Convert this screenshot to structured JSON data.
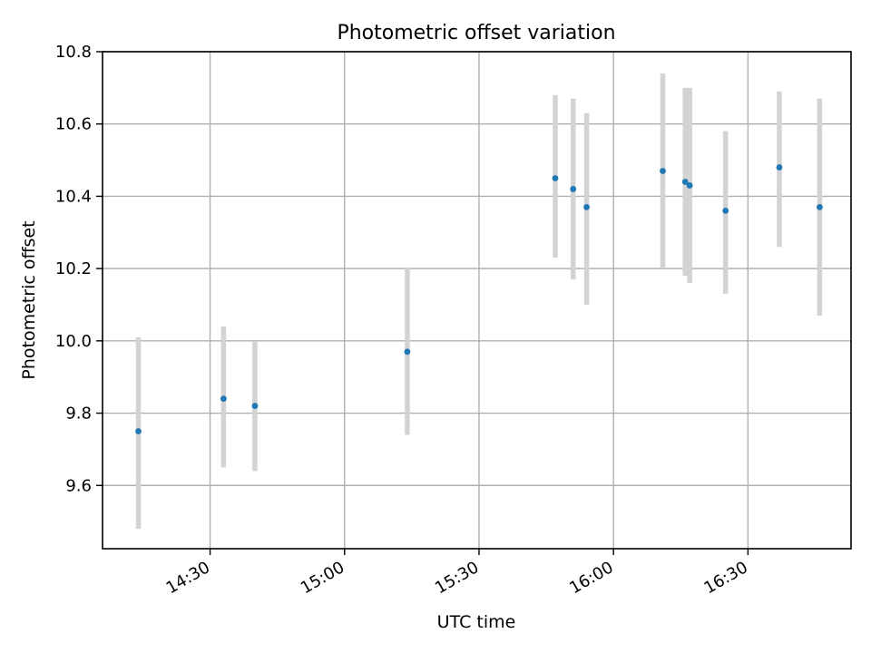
{
  "chart_data": {
    "type": "scatter",
    "title": "Photometric offset variation",
    "xlabel": "UTC time",
    "ylabel": "Photometric offset",
    "xlim": [
      "14:06",
      "16:53"
    ],
    "ylim": [
      9.425,
      10.8
    ],
    "x_ticks": [
      "14:30",
      "15:00",
      "15:30",
      "16:00",
      "16:30"
    ],
    "y_ticks": [
      9.6,
      9.8,
      10.0,
      10.2,
      10.4,
      10.6,
      10.8
    ],
    "y_tick_labels": [
      "9.6",
      "9.8",
      "10.0",
      "10.2",
      "10.4",
      "10.6",
      "10.8"
    ],
    "grid": true,
    "marker_color": "#1f77b4",
    "errorbar_color": "#d3d3d3",
    "points": [
      {
        "x": "14:14",
        "y": 9.75,
        "y_low": 9.48,
        "y_high": 10.01
      },
      {
        "x": "14:33",
        "y": 9.84,
        "y_low": 9.65,
        "y_high": 10.04
      },
      {
        "x": "14:40",
        "y": 9.82,
        "y_low": 9.64,
        "y_high": 10.0
      },
      {
        "x": "15:14",
        "y": 9.97,
        "y_low": 9.74,
        "y_high": 10.2
      },
      {
        "x": "15:47",
        "y": 10.45,
        "y_low": 10.23,
        "y_high": 10.68
      },
      {
        "x": "15:51",
        "y": 10.42,
        "y_low": 10.17,
        "y_high": 10.67
      },
      {
        "x": "15:54",
        "y": 10.37,
        "y_low": 10.1,
        "y_high": 10.63
      },
      {
        "x": "16:11",
        "y": 10.47,
        "y_low": 10.2,
        "y_high": 10.74
      },
      {
        "x": "16:16",
        "y": 10.44,
        "y_low": 10.18,
        "y_high": 10.7
      },
      {
        "x": "16:17",
        "y": 10.43,
        "y_low": 10.16,
        "y_high": 10.7
      },
      {
        "x": "16:25",
        "y": 10.36,
        "y_low": 10.13,
        "y_high": 10.58
      },
      {
        "x": "16:37",
        "y": 10.48,
        "y_low": 10.26,
        "y_high": 10.69
      },
      {
        "x": "16:46",
        "y": 10.37,
        "y_low": 10.07,
        "y_high": 10.67
      }
    ]
  }
}
